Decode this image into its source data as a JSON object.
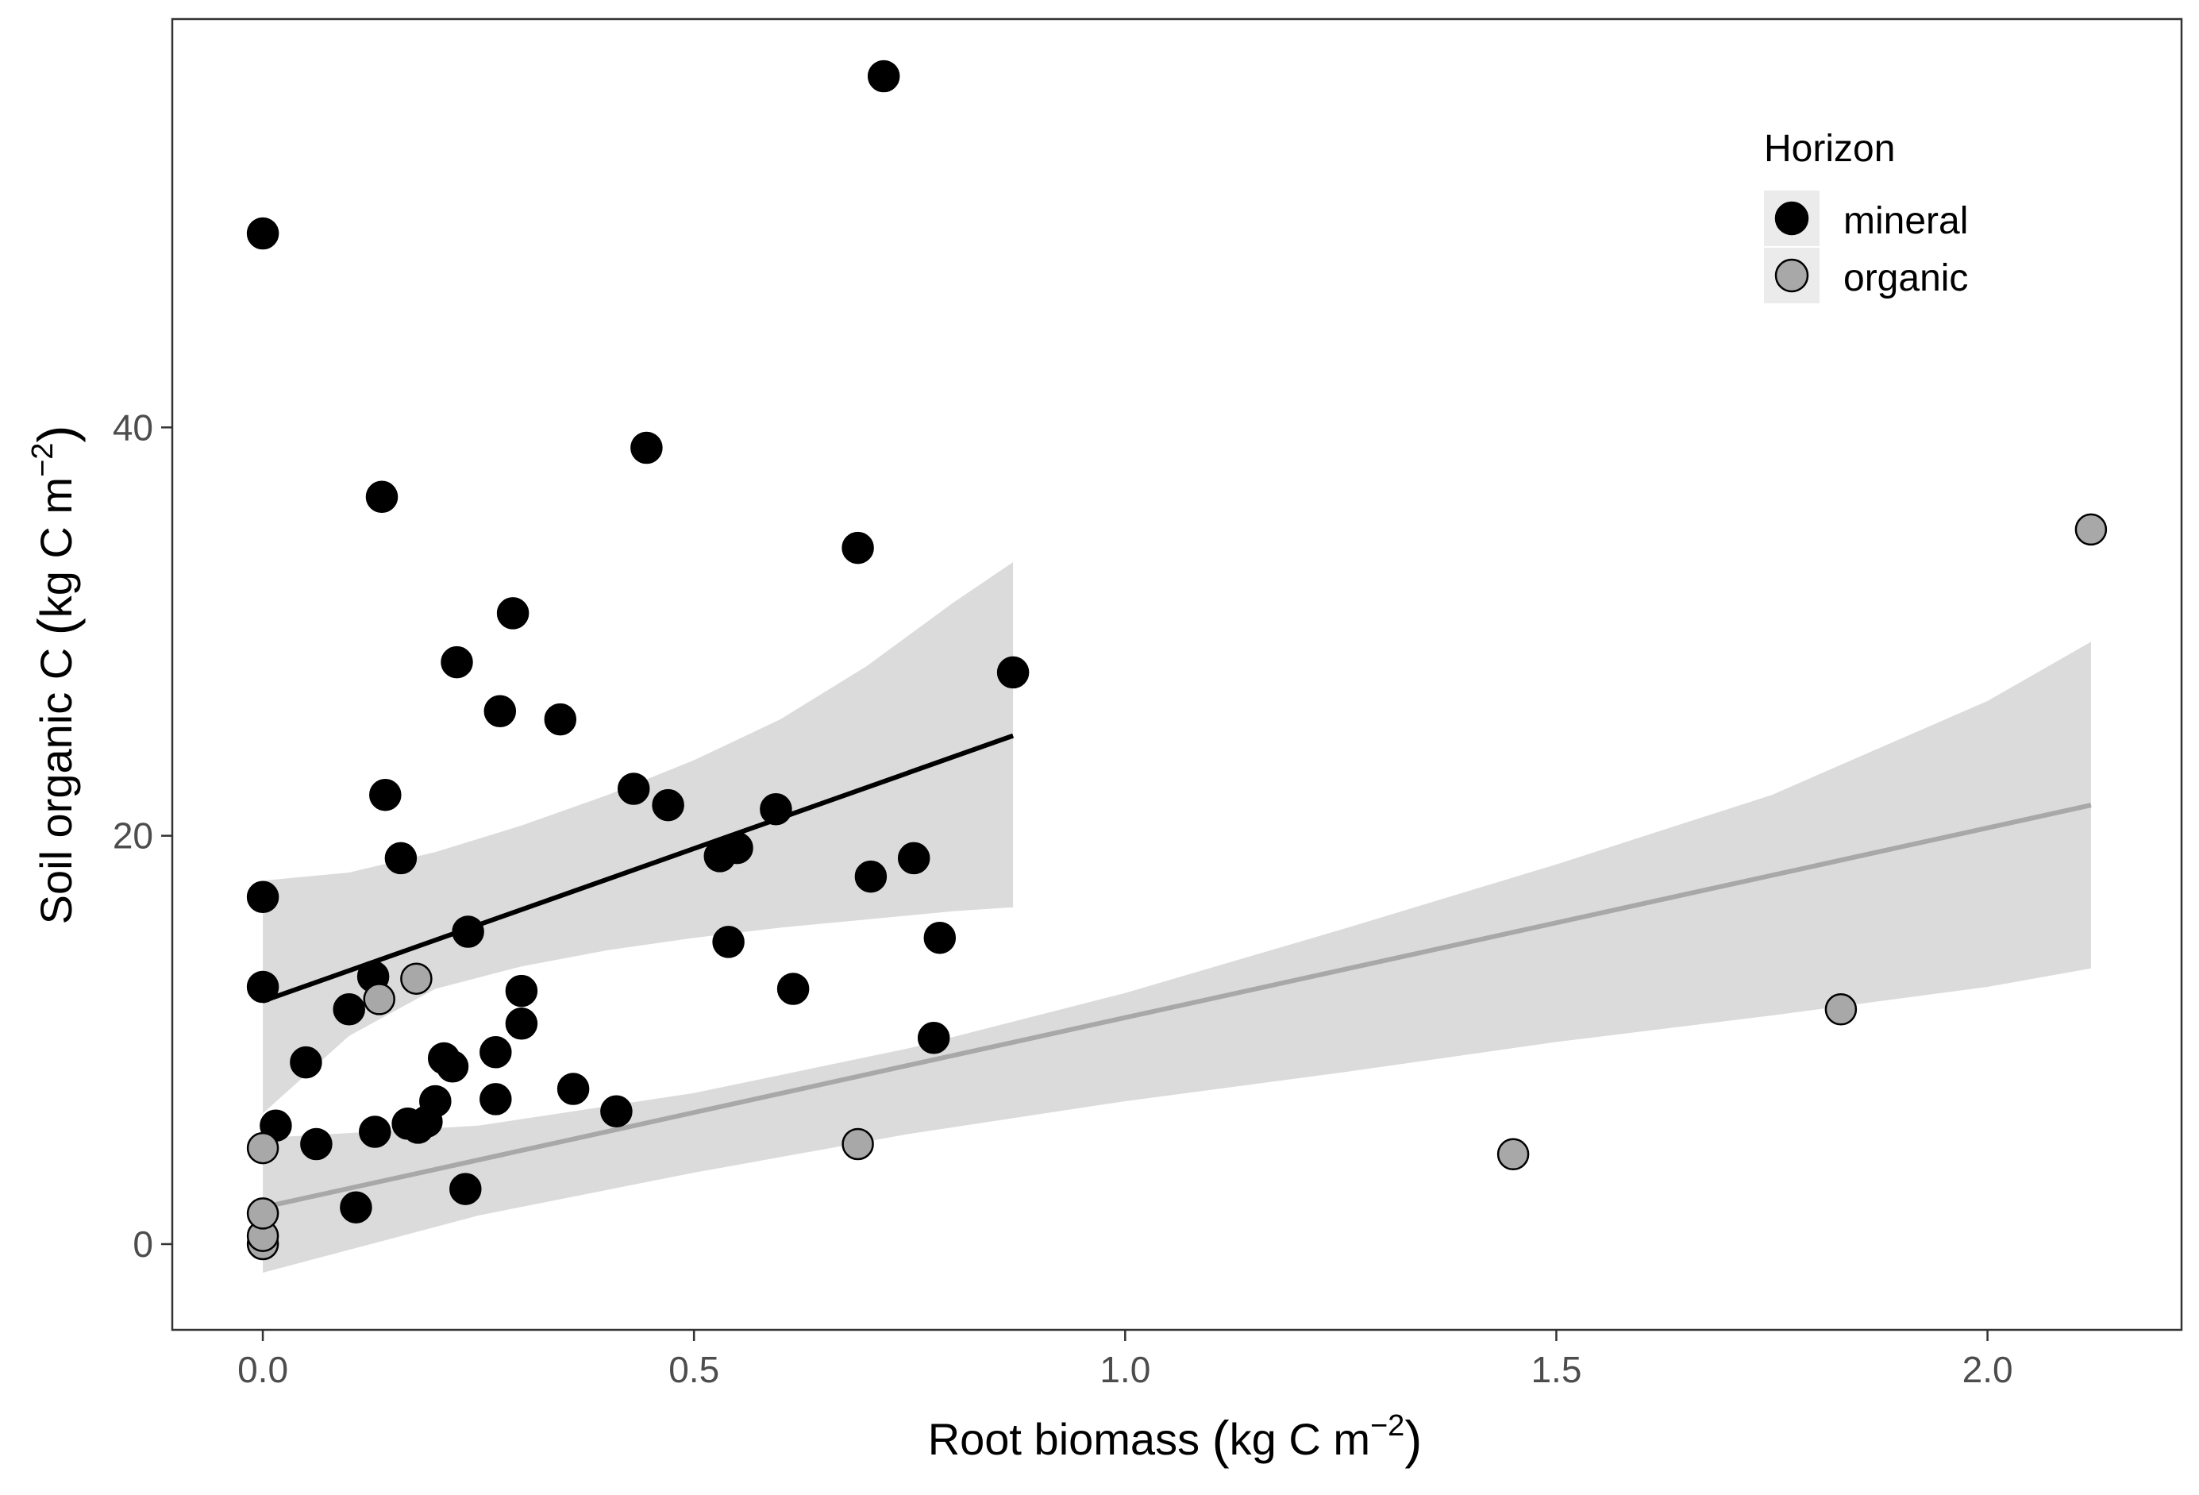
{
  "chart_data": {
    "type": "scatter",
    "xlabel": {
      "prefix": "Root biomass ",
      "open": "(",
      "unit": "kg C m",
      "sup": "−2",
      "close": ")"
    },
    "ylabel": {
      "prefix": "Soil organic C ",
      "open": "(",
      "unit": "kg C m",
      "sup": "−2",
      "close": ")"
    },
    "xlim": [
      -0.105,
      2.225
    ],
    "ylim": [
      -4.2,
      60.0
    ],
    "x_ticks": [
      0.0,
      0.5,
      1.0,
      1.5,
      2.0
    ],
    "x_tick_labels": [
      "0.0",
      "0.5",
      "1.0",
      "1.5",
      "2.0"
    ],
    "y_ticks": [
      0,
      20,
      40
    ],
    "y_tick_labels": [
      "0",
      "20",
      "40"
    ],
    "grid": false,
    "legend": {
      "title": "Horizon",
      "position": "top-right",
      "entries": [
        {
          "label": "mineral",
          "color": "#000000"
        },
        {
          "label": "organic",
          "color": "#a8a8a8"
        }
      ]
    },
    "series": [
      {
        "name": "mineral",
        "color": "#000000",
        "points": [
          [
            0.0,
            49.5
          ],
          [
            0.0,
            17.0
          ],
          [
            0.0,
            12.6
          ],
          [
            0.015,
            5.8
          ],
          [
            0.05,
            8.9
          ],
          [
            0.062,
            4.9
          ],
          [
            0.1,
            11.5
          ],
          [
            0.108,
            1.8
          ],
          [
            0.128,
            13.1
          ],
          [
            0.13,
            5.5
          ],
          [
            0.138,
            36.6
          ],
          [
            0.142,
            22.0
          ],
          [
            0.16,
            18.9
          ],
          [
            0.168,
            5.9
          ],
          [
            0.18,
            5.7
          ],
          [
            0.19,
            6.0
          ],
          [
            0.2,
            7.0
          ],
          [
            0.21,
            9.1
          ],
          [
            0.22,
            8.7
          ],
          [
            0.225,
            28.5
          ],
          [
            0.235,
            2.7
          ],
          [
            0.238,
            15.3
          ],
          [
            0.27,
            9.4
          ],
          [
            0.27,
            7.1
          ],
          [
            0.275,
            26.1
          ],
          [
            0.29,
            30.9
          ],
          [
            0.3,
            12.4
          ],
          [
            0.3,
            10.8
          ],
          [
            0.345,
            25.7
          ],
          [
            0.36,
            7.6
          ],
          [
            0.41,
            6.5
          ],
          [
            0.43,
            22.3
          ],
          [
            0.445,
            39.0
          ],
          [
            0.47,
            21.5
          ],
          [
            0.53,
            19.0
          ],
          [
            0.54,
            14.8
          ],
          [
            0.55,
            19.4
          ],
          [
            0.595,
            21.3
          ],
          [
            0.615,
            12.5
          ],
          [
            0.69,
            34.1
          ],
          [
            0.705,
            18.0
          ],
          [
            0.72,
            57.2
          ],
          [
            0.755,
            18.9
          ],
          [
            0.778,
            10.1
          ],
          [
            0.785,
            15.0
          ],
          [
            0.87,
            28.0
          ]
        ],
        "fit": {
          "x": [
            0.0,
            0.87
          ],
          "y": [
            11.9,
            24.9
          ]
        },
        "ci_band": {
          "x": [
            0.0,
            0.1,
            0.2,
            0.3,
            0.4,
            0.5,
            0.6,
            0.7,
            0.8,
            0.87
          ],
          "upper": [
            17.8,
            18.2,
            19.2,
            20.5,
            22.0,
            23.7,
            25.7,
            28.3,
            31.4,
            33.4
          ],
          "lower": [
            6.4,
            10.2,
            12.5,
            13.6,
            14.4,
            15.0,
            15.5,
            15.9,
            16.3,
            16.5
          ]
        }
      },
      {
        "name": "organic",
        "color": "#a8a8a8",
        "points": [
          [
            0.0,
            0.0
          ],
          [
            0.0,
            0.4
          ],
          [
            0.0,
            1.5
          ],
          [
            0.0,
            4.7
          ],
          [
            0.135,
            12.0
          ],
          [
            0.178,
            13.0
          ],
          [
            0.69,
            4.9
          ],
          [
            1.45,
            4.4
          ],
          [
            1.83,
            11.5
          ],
          [
            2.12,
            35.0
          ]
        ],
        "fit": {
          "x": [
            0.0,
            2.12
          ],
          "y": [
            1.8,
            21.5
          ]
        },
        "ci_band": {
          "x": [
            0.0,
            0.25,
            0.5,
            0.75,
            1.0,
            1.25,
            1.5,
            1.75,
            2.0,
            2.12
          ],
          "upper": [
            5.2,
            5.8,
            7.4,
            9.6,
            12.3,
            15.4,
            18.6,
            22.0,
            26.6,
            29.5
          ],
          "lower": [
            -1.4,
            1.4,
            3.5,
            5.4,
            7.0,
            8.4,
            9.9,
            11.2,
            12.6,
            13.5
          ]
        }
      }
    ]
  }
}
